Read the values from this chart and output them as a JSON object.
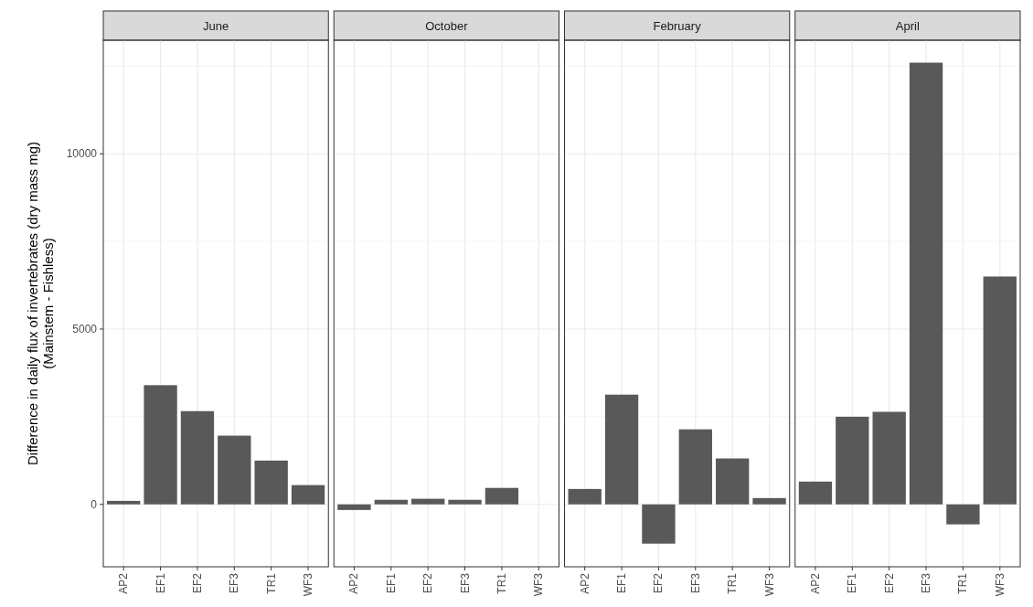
{
  "chart_data": [
    {
      "type": "bar",
      "title": "June",
      "ylabel": "Difference in daily flux of invertebrates (dry mass mg)\n(Mainstem - Fishless)",
      "categories": [
        "AP2",
        "EF1",
        "EF2",
        "EF3",
        "TR1",
        "WF3"
      ],
      "values": [
        100,
        3400,
        2660,
        1960,
        1250,
        550
      ],
      "color": "#595959",
      "ylim": [
        -1780,
        13240
      ],
      "yticks": [
        0,
        {
          "value": 2500,
          "label": null
        },
        5000,
        {
          "value": 7500,
          "label": null
        },
        10000,
        {
          "value": 12500,
          "label": null
        }
      ],
      "grid": true
    },
    {
      "type": "bar",
      "title": "October",
      "categories": [
        "AP2",
        "EF1",
        "EF2",
        "EF3",
        "TR1",
        "WF3"
      ],
      "values": [
        -160,
        130,
        160,
        130,
        470,
        null
      ],
      "color": "#595959",
      "ylim": [
        -1780,
        13240
      ],
      "yticks": [
        0,
        {
          "value": 2500,
          "label": null
        },
        5000,
        {
          "value": 7500,
          "label": null
        },
        10000,
        {
          "value": 12500,
          "label": null
        }
      ],
      "grid": true,
      "tick_labels": "x"
    },
    {
      "type": "bar",
      "title": "February",
      "categories": [
        "AP2",
        "EF1",
        "EF2",
        "EF3",
        "TR1",
        "WF3"
      ],
      "values": [
        440,
        3130,
        -1120,
        2140,
        1310,
        180
      ],
      "color": "#595959",
      "ylim": [
        -1780,
        13240
      ],
      "yticks": [
        0,
        {
          "value": 2500,
          "label": null
        },
        5000,
        {
          "value": 7500,
          "label": null
        },
        10000,
        {
          "value": 12500,
          "label": null
        }
      ],
      "grid": true,
      "tick_labels": "x"
    },
    {
      "type": "bar",
      "title": "April",
      "categories": [
        "AP2",
        "EF1",
        "EF2",
        "EF3",
        "TR1",
        "WF3"
      ],
      "values": [
        650,
        2500,
        2640,
        12600,
        -570,
        6500
      ],
      "color": "#595959",
      "ylim": [
        -1780,
        13240
      ],
      "yticks": [
        0,
        {
          "value": 2500,
          "label": null
        },
        5000,
        {
          "value": 7500,
          "label": null
        },
        10000,
        {
          "value": 12500,
          "label": null
        }
      ],
      "grid": true,
      "tick_labels": "x"
    }
  ]
}
